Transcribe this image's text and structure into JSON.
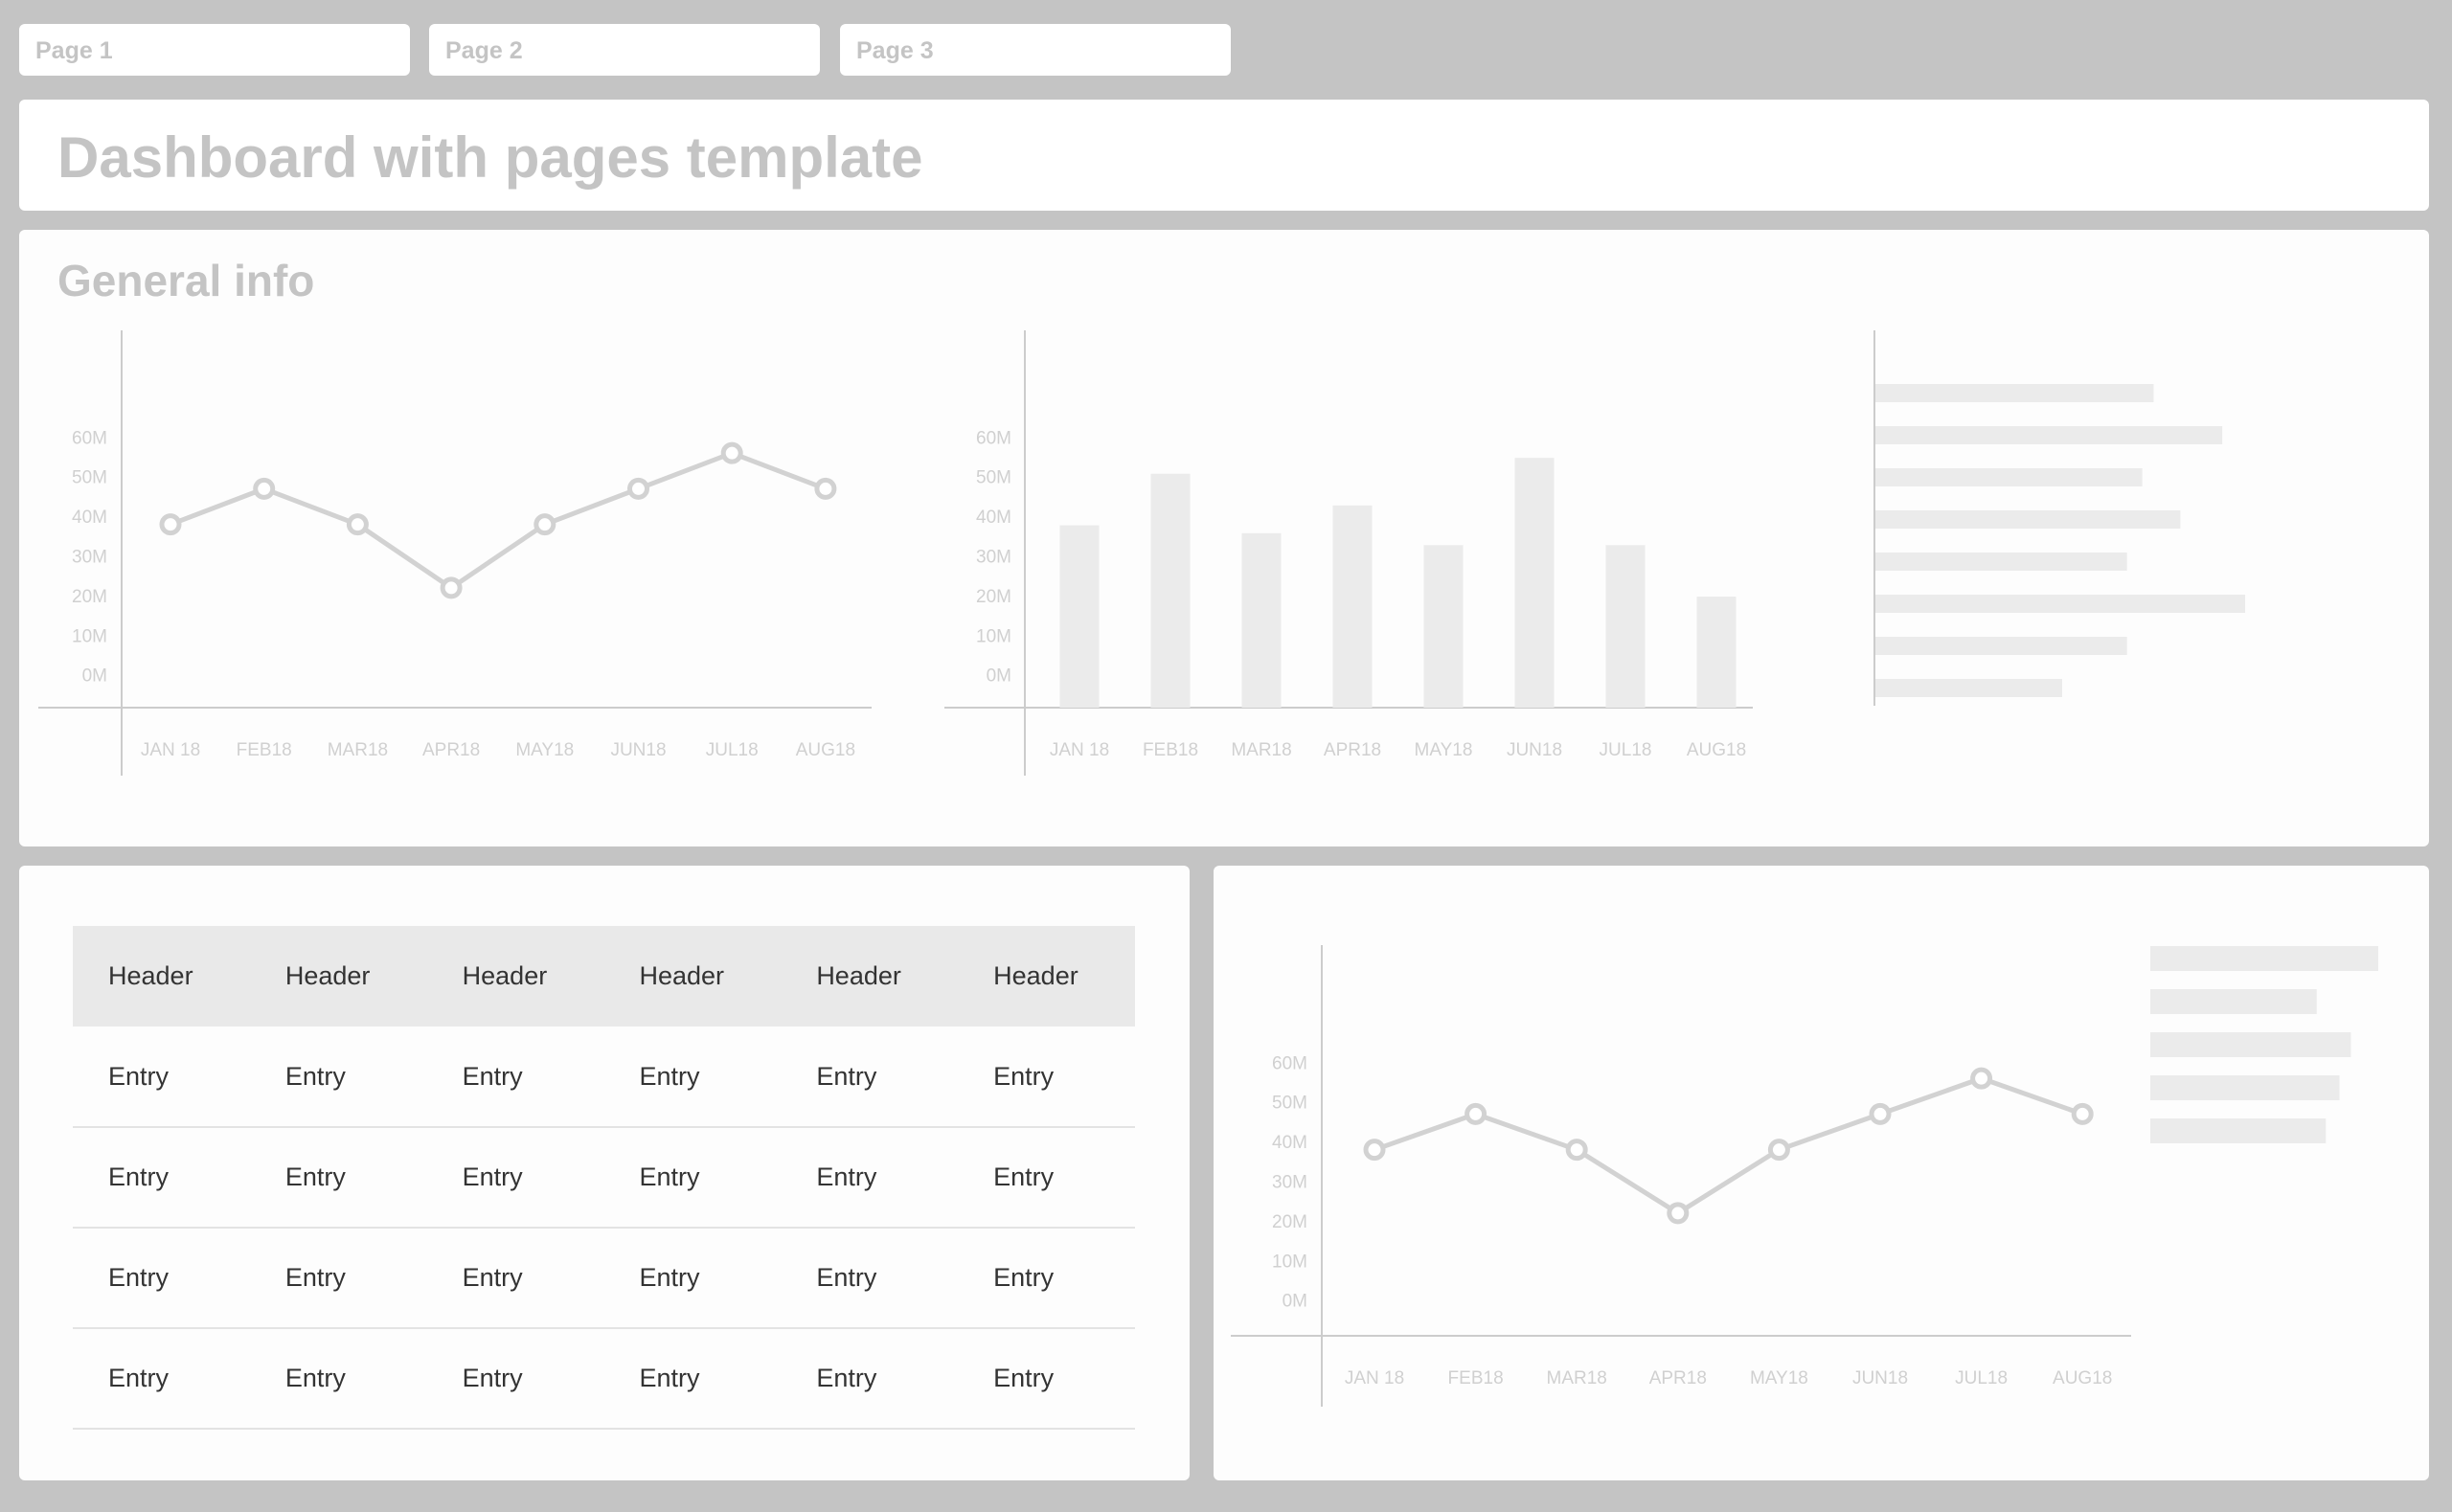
{
  "tabs": [
    {
      "label": "Page 1"
    },
    {
      "label": "Page 2"
    },
    {
      "label": "Page 3"
    }
  ],
  "header": {
    "title": "Dashboard with pages template"
  },
  "general_info": {
    "title": "General info"
  },
  "colors": {
    "background": "#c4c4c4",
    "panel": "#fdfdfd",
    "axis": "#cccccc",
    "line": "#d2d2d2",
    "bar": "#ebebeb",
    "tick_label": "#d0d0d0",
    "table_header": "#e9e9e9"
  },
  "table": {
    "headers": [
      "Header",
      "Header",
      "Header",
      "Header",
      "Header",
      "Header"
    ],
    "rows": [
      [
        "Entry",
        "Entry",
        "Entry",
        "Entry",
        "Entry",
        "Entry"
      ],
      [
        "Entry",
        "Entry",
        "Entry",
        "Entry",
        "Entry",
        "Entry"
      ],
      [
        "Entry",
        "Entry",
        "Entry",
        "Entry",
        "Entry",
        "Entry"
      ],
      [
        "Entry",
        "Entry",
        "Entry",
        "Entry",
        "Entry",
        "Entry"
      ]
    ]
  },
  "chart_data": [
    {
      "type": "line",
      "categories": [
        "JAN 18",
        "FEB18",
        "MAR18",
        "APR18",
        "MAY18",
        "JUN18",
        "JUL18",
        "AUG18"
      ],
      "values": [
        38,
        47,
        38,
        22,
        38,
        47,
        56,
        47
      ],
      "yticks": [
        "0M",
        "10M",
        "20M",
        "30M",
        "40M",
        "50M",
        "60M"
      ],
      "ylim": [
        0,
        60
      ],
      "grid": false
    },
    {
      "type": "bar",
      "categories": [
        "JAN 18",
        "FEB18",
        "MAR18",
        "APR18",
        "MAY18",
        "JUN18",
        "JUL18",
        "AUG18"
      ],
      "values": [
        46,
        59,
        44,
        51,
        41,
        63,
        41,
        28
      ],
      "yticks": [
        "0M",
        "10M",
        "20M",
        "30M",
        "40M",
        "50M",
        "60M"
      ],
      "ylim": [
        0,
        60
      ],
      "grid": false
    },
    {
      "type": "bar",
      "orientation": "horizontal",
      "values": [
        73,
        91,
        70,
        80,
        66,
        97,
        66,
        49
      ],
      "grid": false
    },
    {
      "type": "line",
      "categories": [
        "JAN 18",
        "FEB18",
        "MAR18",
        "APR18",
        "MAY18",
        "JUN18",
        "JUL18",
        "AUG18"
      ],
      "values": [
        38,
        47,
        38,
        22,
        38,
        47,
        56,
        47
      ],
      "yticks": [
        "0M",
        "10M",
        "20M",
        "30M",
        "40M",
        "50M",
        "60M"
      ],
      "ylim": [
        0,
        60
      ],
      "grid": false
    },
    {
      "type": "bar",
      "orientation": "horizontal",
      "values": [
        100,
        73,
        88,
        83,
        77
      ],
      "grid": false
    }
  ]
}
